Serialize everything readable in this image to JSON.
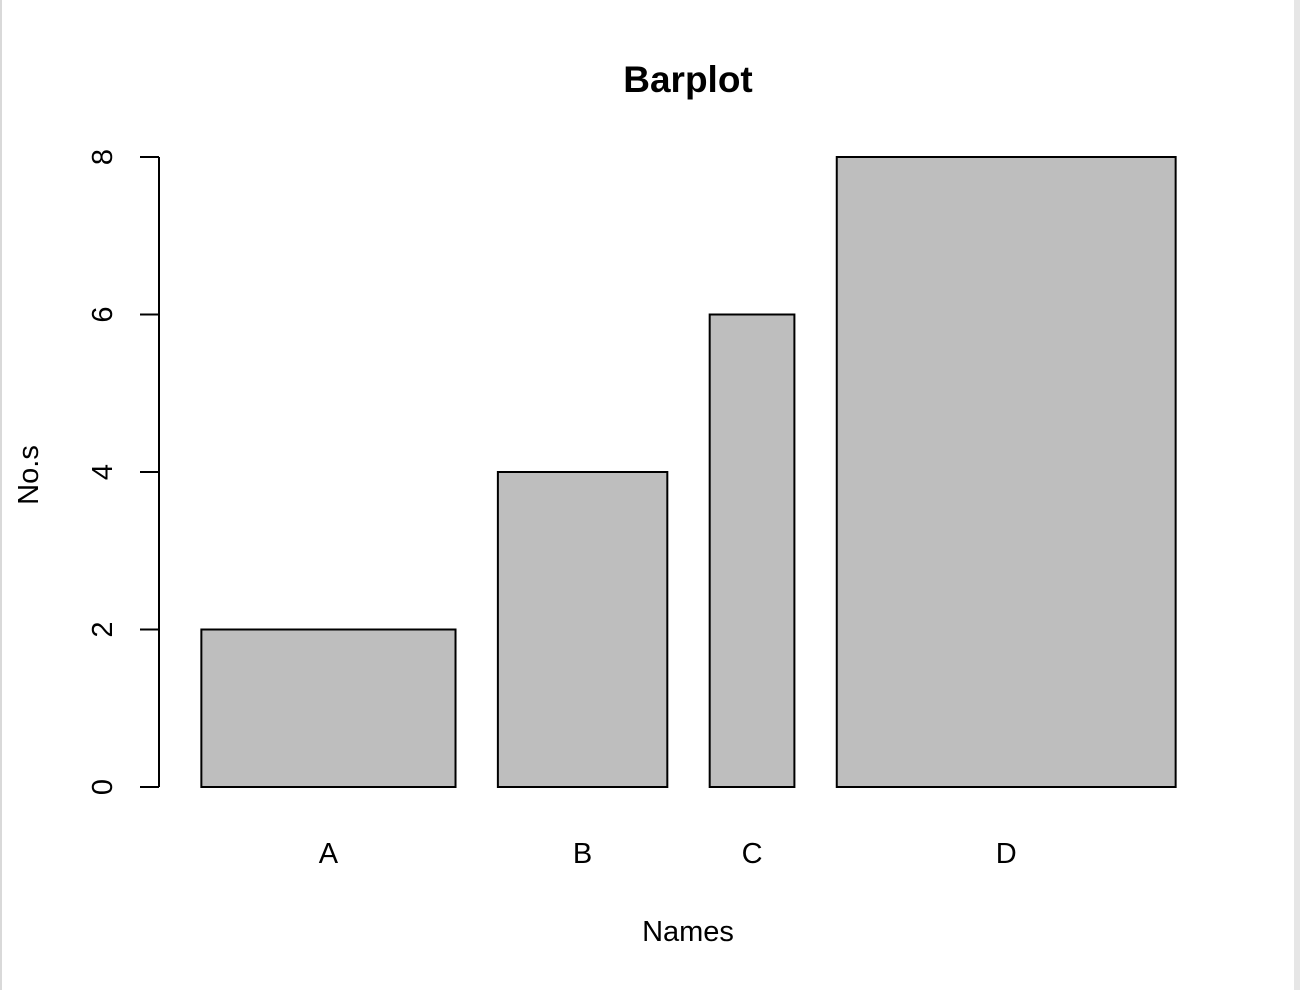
{
  "chart_data": {
    "type": "bar",
    "title": "Barplot",
    "xlabel": "Names",
    "ylabel": "No.s",
    "categories": [
      "A",
      "B",
      "C",
      "D"
    ],
    "values": [
      2,
      4,
      6,
      8
    ],
    "relative_widths": [
      6,
      4,
      2,
      8
    ],
    "ylim": [
      0,
      8
    ],
    "yticks": [
      "0",
      "2",
      "4",
      "6",
      "8"
    ],
    "grid": false,
    "legend": "none",
    "bar_fill": "#bebebe",
    "bar_stroke": "#000000"
  }
}
